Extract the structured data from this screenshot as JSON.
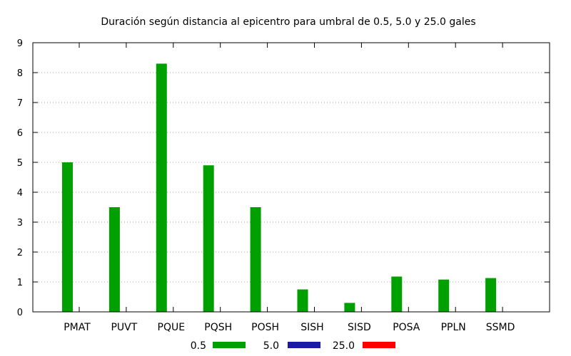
{
  "chart_data": {
    "type": "bar",
    "title": "Duración según distancia al epicentro para umbral de 0.5, 5.0 y 25.0 gales",
    "xlabel": "",
    "ylabel": "",
    "ylim": [
      0,
      9
    ],
    "yticks": [
      0,
      1,
      2,
      3,
      4,
      5,
      6,
      7,
      8,
      9
    ],
    "grid": true,
    "legend_position": "bottom",
    "categories": [
      "PMAT",
      "PUVT",
      "PQUE",
      "PQSH",
      "POSH",
      "SISH",
      "SISD",
      "POSA",
      "PPLN",
      "SSMD"
    ],
    "series": [
      {
        "name": "0.5",
        "color": "#00a000",
        "values": [
          5.0,
          3.5,
          8.3,
          4.9,
          3.5,
          0.75,
          0.3,
          1.18,
          1.08,
          1.13
        ]
      },
      {
        "name": "5.0",
        "color": "#1a1aa6",
        "values": [
          0,
          0,
          0,
          0,
          0,
          0,
          0,
          0,
          0,
          0
        ]
      },
      {
        "name": "25.0",
        "color": "#ff0000",
        "values": [
          0,
          0,
          0,
          0,
          0,
          0,
          0,
          0,
          0,
          0
        ]
      }
    ]
  }
}
